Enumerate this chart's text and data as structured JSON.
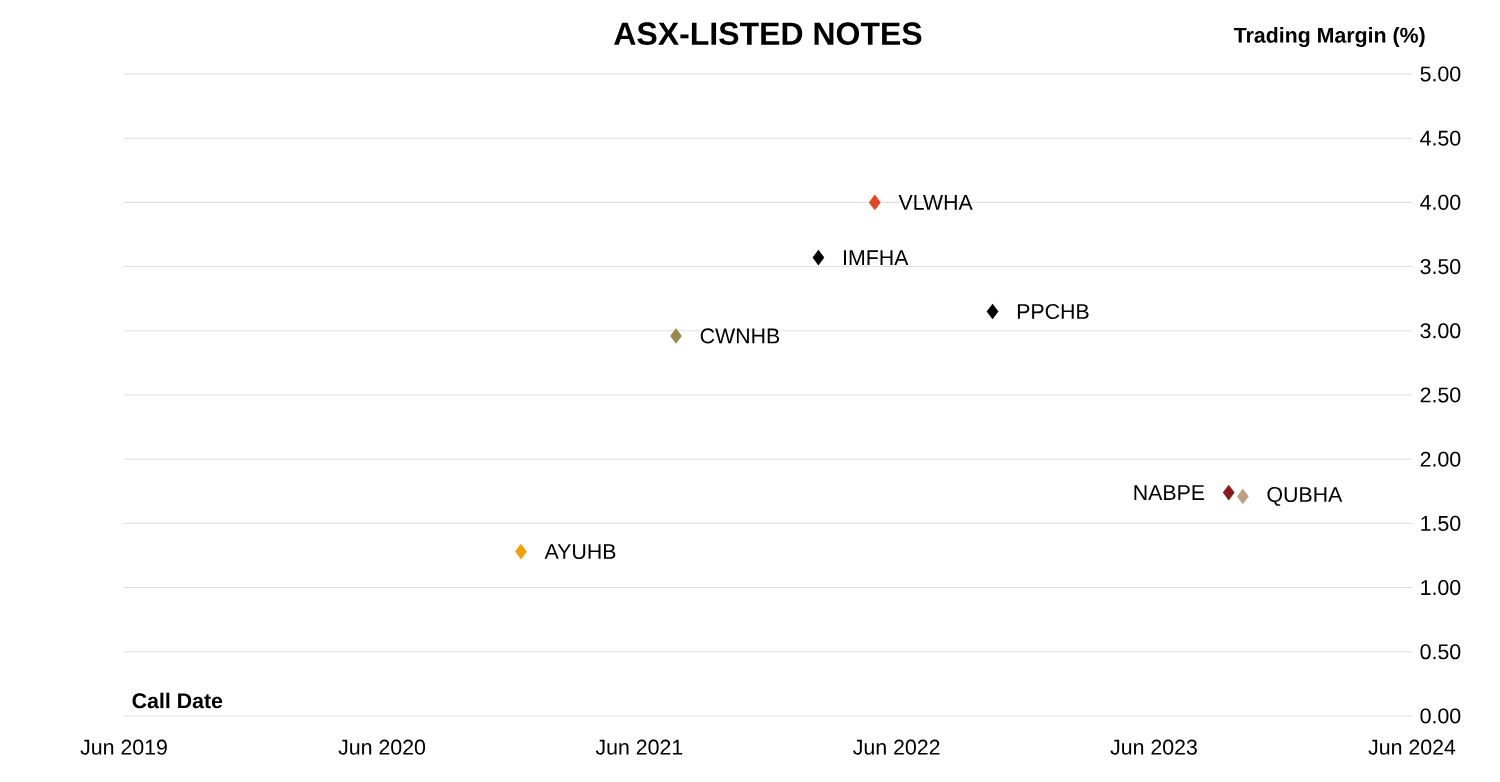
{
  "chart_data": {
    "type": "scatter",
    "title": "ASX-LISTED NOTES",
    "xlabel": "Call Date",
    "ylabel": "Trading Margin (%)",
    "marker": "diamond",
    "grid": "y",
    "xlim": [
      "2019-06-01",
      "2024-06-01"
    ],
    "xticks": [
      {
        "value": "2019-06-01",
        "label": "Jun 2019"
      },
      {
        "value": "2020-06-01",
        "label": "Jun 2020"
      },
      {
        "value": "2021-06-01",
        "label": "Jun 2021"
      },
      {
        "value": "2022-06-01",
        "label": "Jun 2022"
      },
      {
        "value": "2023-06-01",
        "label": "Jun 2023"
      },
      {
        "value": "2024-06-01",
        "label": "Jun 2024"
      }
    ],
    "ylim": [
      0,
      5
    ],
    "yticks": [
      {
        "value": 0,
        "label": "0.00"
      },
      {
        "value": 0.5,
        "label": "0.50"
      },
      {
        "value": 1,
        "label": "1.00"
      },
      {
        "value": 1.5,
        "label": "1.50"
      },
      {
        "value": 2,
        "label": "2.00"
      },
      {
        "value": 2.5,
        "label": "2.50"
      },
      {
        "value": 3,
        "label": "3.00"
      },
      {
        "value": 3.5,
        "label": "3.50"
      },
      {
        "value": 4,
        "label": "4.00"
      },
      {
        "value": 4.5,
        "label": "4.50"
      },
      {
        "value": 5,
        "label": "5.00"
      }
    ],
    "series": [
      {
        "name": "AYUHB",
        "color": "#f5a000",
        "x": [
          "2020-12-15"
        ],
        "values": [
          1.28
        ]
      },
      {
        "name": "CWNHB",
        "color": "#9a8a4a",
        "x": [
          "2021-07-23"
        ],
        "values": [
          2.96
        ]
      },
      {
        "name": "IMFHA",
        "color": "#000000",
        "x": [
          "2022-02-10"
        ],
        "values": [
          3.57
        ]
      },
      {
        "name": "VLWHA",
        "color": "#e8431f",
        "x": [
          "2022-05-01"
        ],
        "values": [
          4.0
        ]
      },
      {
        "name": "PPCHB",
        "color": "#000000",
        "x": [
          "2022-10-15"
        ],
        "values": [
          3.15
        ]
      },
      {
        "name": "NABPE",
        "color": "#8b1a1a",
        "x": [
          "2023-09-15"
        ],
        "values": [
          1.74
        ]
      },
      {
        "name": "QUBHA",
        "color": "#c0a080",
        "x": [
          "2023-10-05"
        ],
        "values": [
          1.71
        ]
      }
    ]
  }
}
